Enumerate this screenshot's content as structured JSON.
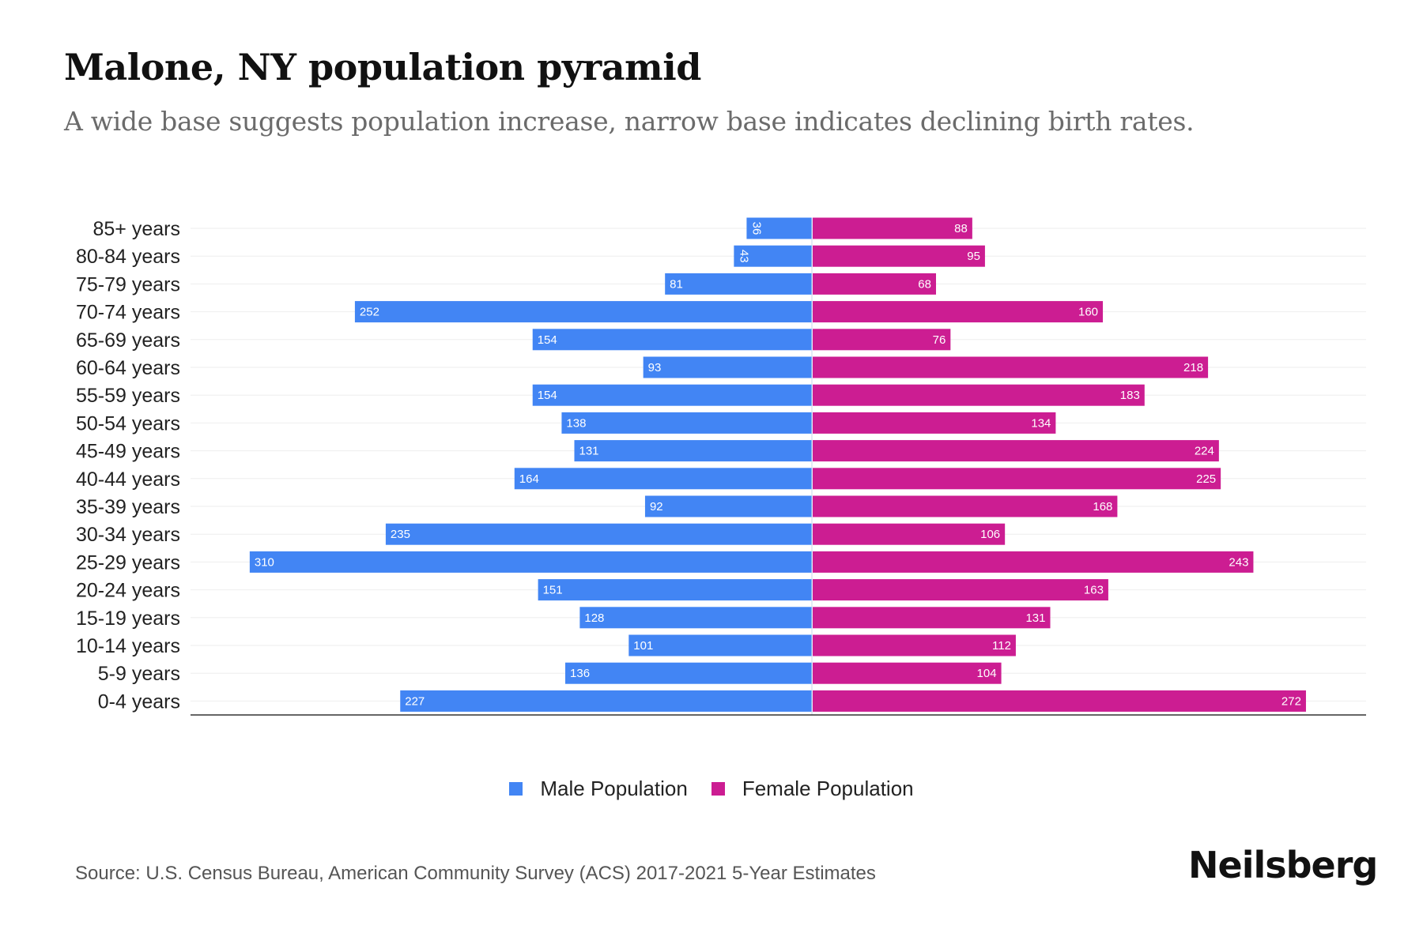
{
  "header": {
    "title": "Malone, NY population pyramid",
    "subtitle": "A wide base suggests population increase, narrow base indicates declining birth rates."
  },
  "footer": {
    "source": "Source: U.S. Census Bureau, American Community Survey (ACS) 2017-2021 5-Year Estimates",
    "brand": "Neilsberg"
  },
  "colors": {
    "male": "#4285f4",
    "female": "#cc1d92",
    "grid": "#eeeeee",
    "axis": "#333333"
  },
  "chart_data": {
    "type": "bar",
    "orientation": "horizontal-diverging",
    "title": "Malone, NY population pyramid",
    "subtitle": "A wide base suggests population increase, narrow base indicates declining birth rates.",
    "xlabel": "",
    "ylabel": "",
    "categories": [
      "85+ years",
      "80-84 years",
      "75-79 years",
      "70-74 years",
      "65-69 years",
      "60-64 years",
      "55-59 years",
      "50-54 years",
      "45-49 years",
      "40-44 years",
      "35-39 years",
      "30-34 years",
      "25-29 years",
      "20-24 years",
      "15-19 years",
      "10-14 years",
      "5-9 years",
      "0-4 years"
    ],
    "series": [
      {
        "name": "Male Population",
        "side": "left",
        "values": [
          36,
          43,
          81,
          252,
          154,
          93,
          154,
          138,
          131,
          164,
          92,
          235,
          310,
          151,
          128,
          101,
          136,
          227
        ]
      },
      {
        "name": "Female Population",
        "side": "right",
        "values": [
          88,
          95,
          68,
          160,
          76,
          218,
          183,
          134,
          224,
          225,
          168,
          106,
          243,
          163,
          131,
          112,
          104,
          272
        ]
      }
    ],
    "xlim": [
      -310,
      336
    ],
    "grid": true,
    "data_labels": true,
    "legend": "bottom-center"
  }
}
